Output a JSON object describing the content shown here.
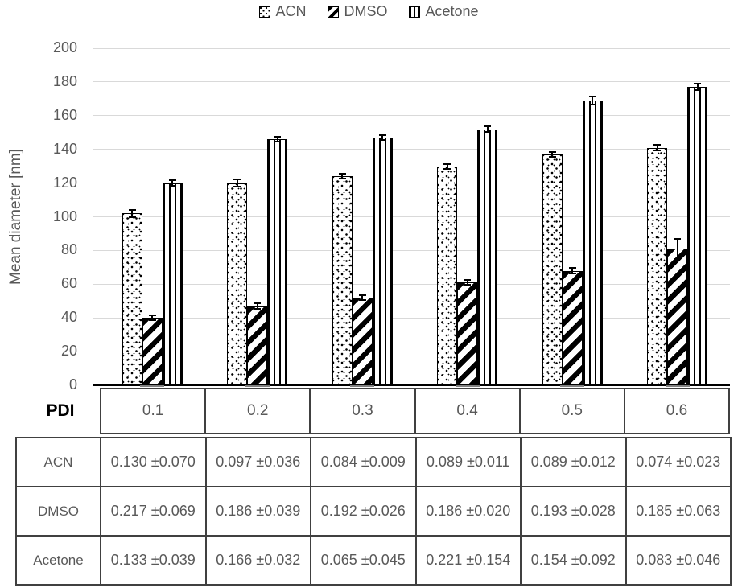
{
  "legend": {
    "items": [
      {
        "label": "ACN",
        "pattern": "dots"
      },
      {
        "label": "DMSO",
        "pattern": "diagonal-stripes"
      },
      {
        "label": "Acetone",
        "pattern": "vertical-stripes"
      }
    ]
  },
  "chart_data": {
    "type": "bar",
    "title": "",
    "ylabel": "Mean diameter [nm]",
    "xlabel": "PDI",
    "ylim": [
      0,
      200
    ],
    "ytick_step": 20,
    "yticks": [
      "0",
      "20",
      "40",
      "60",
      "80",
      "100",
      "120",
      "140",
      "160",
      "180",
      "200"
    ],
    "grid": true,
    "legend_position": "top",
    "categories": [
      "0.1",
      "0.2",
      "0.3",
      "0.4",
      "0.5",
      "0.6"
    ],
    "series": [
      {
        "name": "ACN",
        "pattern": "dots",
        "values": [
          102,
          120,
          124,
          130,
          137,
          141
        ],
        "errors": [
          2,
          2,
          1.5,
          1.5,
          1.5,
          1.5
        ]
      },
      {
        "name": "DMSO",
        "pattern": "diagonal-stripes",
        "values": [
          40,
          47,
          52,
          61,
          68,
          81
        ],
        "errors": [
          1.5,
          1.5,
          1.5,
          1.5,
          1.5,
          6
        ]
      },
      {
        "name": "Acetone",
        "pattern": "vertical-stripes",
        "values": [
          120,
          146,
          147,
          152,
          169,
          177
        ],
        "errors": [
          1.5,
          1.5,
          1.5,
          1.5,
          2.5,
          2
        ]
      }
    ]
  },
  "table": {
    "corner_label": "PDI",
    "columns": [
      "0.1",
      "0.2",
      "0.3",
      "0.4",
      "0.5",
      "0.6"
    ],
    "rows": [
      {
        "label": "ACN",
        "values": [
          "0.130 ±0.070",
          "0.097 ±0.036",
          "0.084 ±0.009",
          "0.089 ±0.011",
          "0.089 ±0.012",
          "0.074 ±0.023"
        ]
      },
      {
        "label": "DMSO",
        "values": [
          "0.217 ±0.069",
          "0.186 ±0.039",
          "0.192 ±0.026",
          "0.186 ±0.020",
          "0.193 ±0.028",
          "0.185 ±0.063"
        ]
      },
      {
        "label": "Acetone",
        "values": [
          "0.133 ±0.039",
          "0.166 ±0.032",
          "0.065 ±0.045",
          "0.221 ±0.154",
          "0.154 ±0.092",
          "0.083 ±0.046"
        ]
      }
    ]
  },
  "colors": {
    "text_gray": "#595959",
    "gridline": "#d9d9d9",
    "axis_line": "#000000",
    "bar_outline": "#000000",
    "table_border": "#404040",
    "category_tick_dash": "#808080"
  }
}
